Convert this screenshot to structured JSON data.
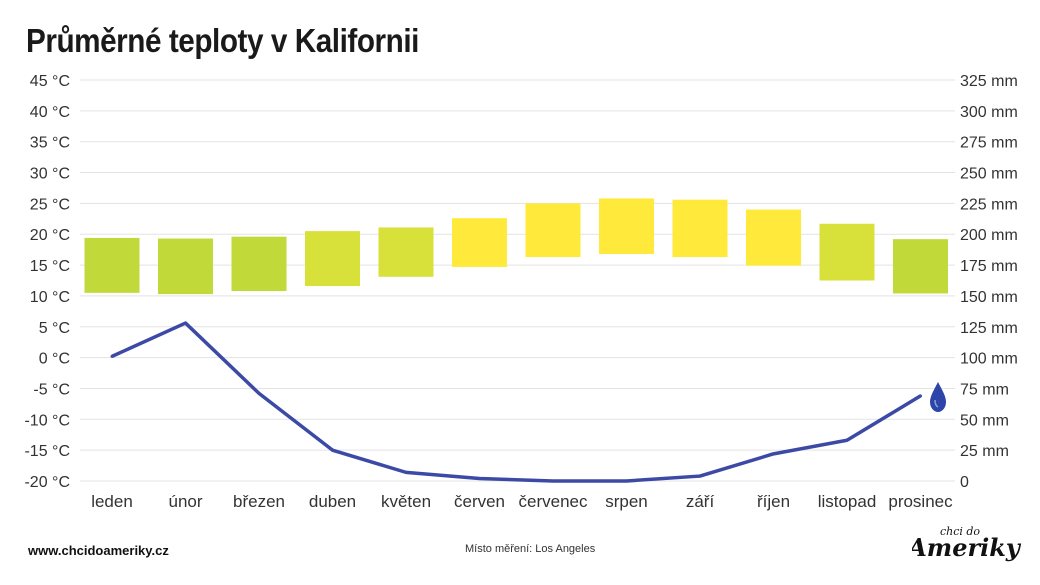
{
  "title": "Průměrné teploty v Kalifornii",
  "footer": {
    "website": "www.chcidoameriky.cz",
    "measurement": "Místo měření: Los Angeles",
    "logo_text_top": "chci do",
    "logo_text_main": "Ameriky"
  },
  "icons": {
    "precipitation": "water-drop-icon"
  },
  "colors": {
    "precip_line": "#3c4aa6",
    "grid": "#e3e3e3",
    "temp_cool": "#c2d93a",
    "temp_mild": "#d8e03a",
    "temp_warm": "#ffe93a",
    "drop": "#2d44a8"
  },
  "chart_data": {
    "type": "bar",
    "categories": [
      "leden",
      "únor",
      "březen",
      "duben",
      "květen",
      "červen",
      "červenec",
      "srpen",
      "září",
      "říjen",
      "listopad",
      "prosinec"
    ],
    "series": [
      {
        "kind": "floating-bar",
        "axis": "left",
        "low": [
          10.5,
          10.3,
          10.8,
          11.6,
          13.1,
          14.7,
          16.3,
          16.8,
          16.3,
          14.9,
          12.5,
          10.4
        ],
        "high": [
          19.4,
          19.3,
          19.6,
          20.5,
          21.1,
          22.6,
          25.0,
          25.8,
          25.6,
          24.0,
          21.7,
          19.2
        ],
        "colors": [
          "#c2d93a",
          "#c2d93a",
          "#c2d93a",
          "#d8e03a",
          "#d8e03a",
          "#ffe93a",
          "#ffe93a",
          "#ffe93a",
          "#ffe93a",
          "#ffe93a",
          "#d8e03a",
          "#c2d93a"
        ]
      },
      {
        "kind": "line",
        "axis": "right",
        "values": [
          101,
          128,
          71,
          25,
          7,
          2,
          0,
          0,
          4,
          22,
          33,
          69
        ]
      }
    ],
    "y_left": {
      "lim": [
        -20,
        45
      ],
      "ticks": [
        45,
        40,
        35,
        30,
        25,
        20,
        15,
        10,
        5,
        0,
        -5,
        -10,
        -15,
        -20
      ],
      "tick_labels": [
        "45 °C",
        "40 °C",
        "35 °C",
        "30 °C",
        "25 °C",
        "20 °C",
        "15 °C",
        "10 °C",
        "5 °C",
        "0 °C",
        "-5 °C",
        "-10 °C",
        "-15 °C",
        "-20 °C"
      ]
    },
    "y_right": {
      "lim": [
        0,
        325
      ],
      "ticks": [
        325,
        300,
        275,
        250,
        225,
        200,
        175,
        150,
        125,
        100,
        75,
        50,
        25,
        0
      ],
      "tick_labels": [
        "325 mm",
        "300 mm",
        "275 mm",
        "250 mm",
        "225 mm",
        "200 mm",
        "175 mm",
        "150 mm",
        "125 mm",
        "100 mm",
        "75 mm",
        "50 mm",
        "25 mm",
        "0"
      ]
    },
    "grid": true
  }
}
